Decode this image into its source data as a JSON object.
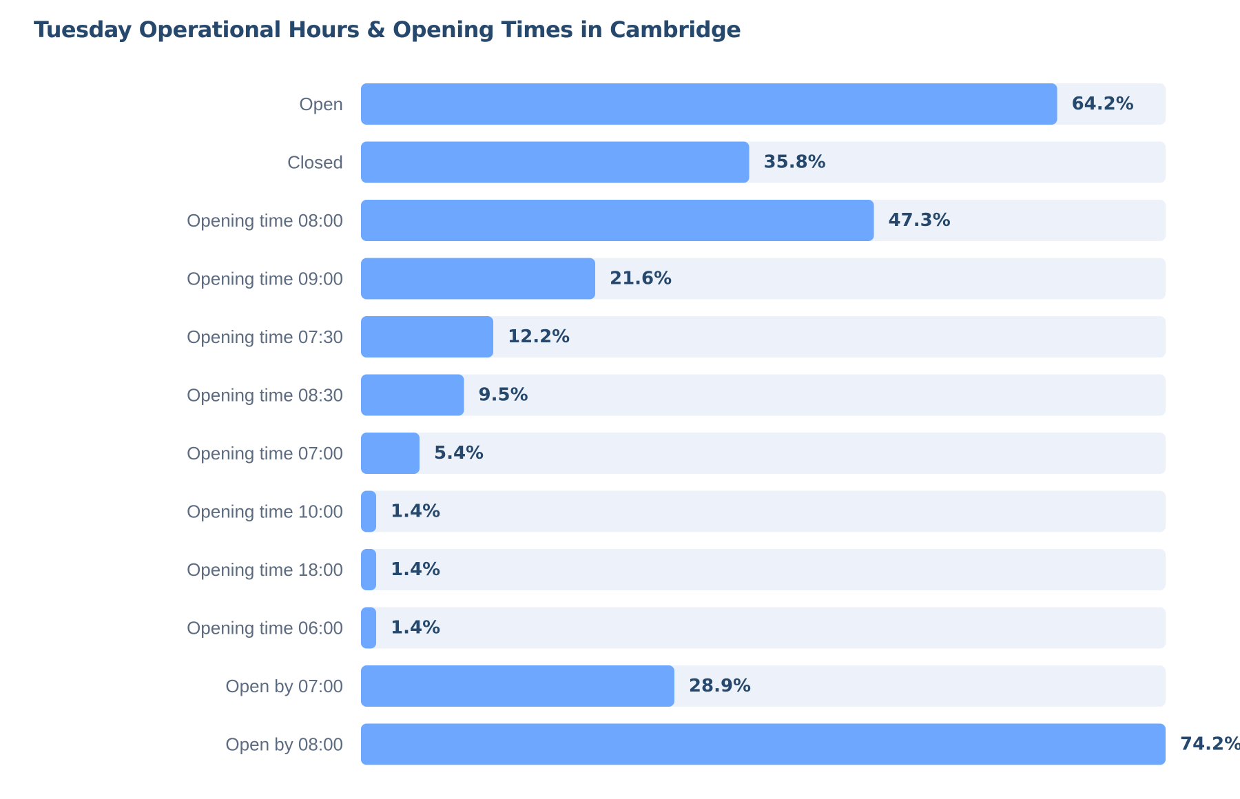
{
  "chart_data": {
    "type": "bar",
    "orientation": "horizontal",
    "title": "Tuesday Operational Hours & Opening Times in Cambridge",
    "categories": [
      "Open",
      "Closed",
      "Opening time 08:00",
      "Opening time 09:00",
      "Opening time 07:30",
      "Opening time 08:30",
      "Opening time 07:00",
      "Opening time 10:00",
      "Opening time 18:00",
      "Opening time 06:00",
      "Open by 07:00",
      "Open by 08:00"
    ],
    "values": [
      64.2,
      35.8,
      47.3,
      21.6,
      12.2,
      9.5,
      5.4,
      1.4,
      1.4,
      1.4,
      28.9,
      74.2
    ],
    "value_labels": [
      "64.2%",
      "35.8%",
      "47.3%",
      "21.6%",
      "12.2%",
      "9.5%",
      "5.4%",
      "1.4%",
      "1.4%",
      "1.4%",
      "28.9%",
      "74.2%"
    ],
    "unit": "%",
    "xlim": [
      0,
      74.2
    ],
    "grid": false,
    "legend": "none",
    "colors": {
      "bar": "#6ea8fe",
      "track": "#edf2fa",
      "category_label": "#5d6b80",
      "value_label": "#27486d",
      "title": "#27486d"
    }
  }
}
